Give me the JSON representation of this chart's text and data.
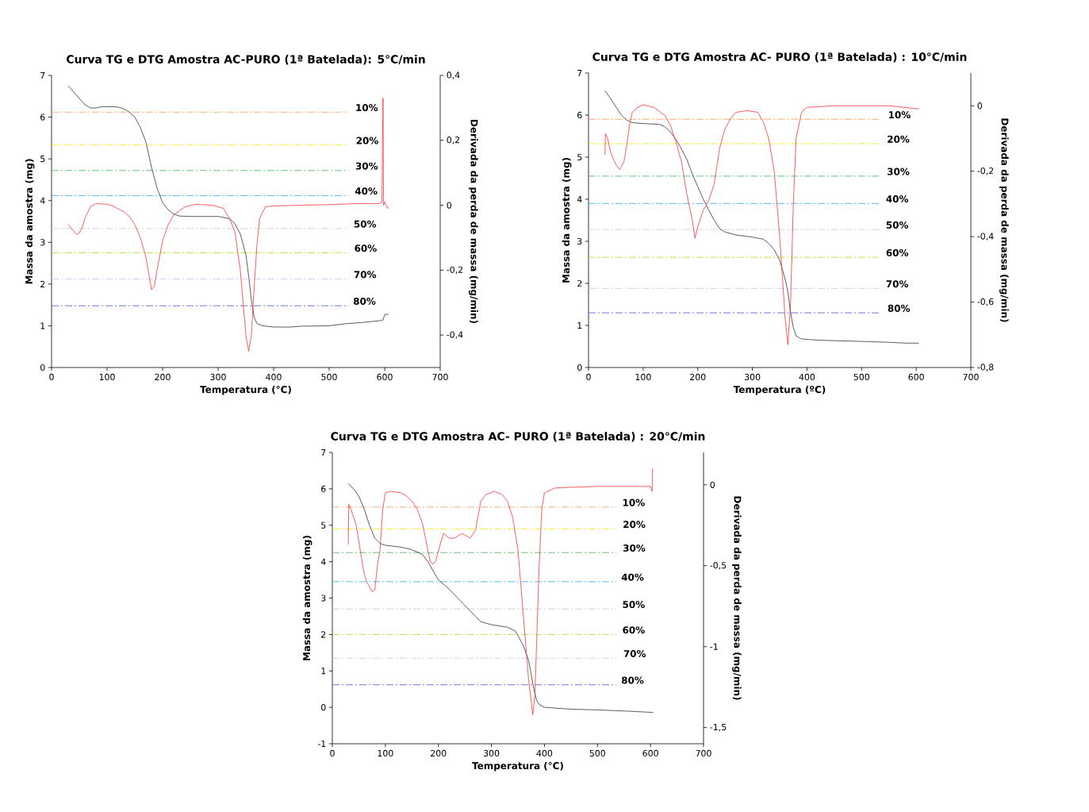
{
  "chart_data": [
    {
      "type": "line",
      "title": "Curva TG e DTG Amostra AC-PURO (1ª Batelada): 5°C/min",
      "xlabel": "Temperatura (°C)",
      "ylabel": "Massa da amostra (mg)",
      "y2label": "Derivada da perda de massa (mg/min)",
      "xlim": [
        0,
        700
      ],
      "xticks": [
        0,
        100,
        200,
        300,
        400,
        500,
        600,
        700
      ],
      "ylim": [
        0,
        7
      ],
      "yticks": [
        0,
        1,
        2,
        3,
        4,
        5,
        6,
        7
      ],
      "y2lim": [
        -0.5,
        0.4
      ],
      "y2ticks": [
        {
          "value": -0.4,
          "label": "-0,4"
        },
        {
          "value": -0.2,
          "label": "-0,2"
        },
        0,
        {
          "value": 0.2,
          "label": "0,2"
        },
        {
          "value": 0.4,
          "label": "0,4"
        }
      ],
      "series": [
        {
          "color": "#333333",
          "x": [
            30,
            40,
            50,
            60,
            70,
            80,
            90,
            110,
            120,
            130,
            140,
            150,
            160,
            170,
            175,
            180,
            190,
            200,
            210,
            220,
            230,
            250,
            300,
            320,
            330,
            340,
            350,
            355,
            360,
            365,
            370,
            380,
            400,
            430,
            450,
            500,
            530,
            560,
            590,
            597,
            600,
            607
          ],
          "values": [
            6.75,
            6.6,
            6.45,
            6.3,
            6.22,
            6.22,
            6.25,
            6.25,
            6.24,
            6.2,
            6.12,
            6.0,
            5.75,
            5.4,
            5.1,
            4.8,
            4.3,
            3.95,
            3.78,
            3.68,
            3.63,
            3.62,
            3.62,
            3.57,
            3.45,
            3.2,
            2.7,
            2.2,
            1.6,
            1.2,
            1.05,
            1.0,
            0.97,
            0.97,
            0.99,
            1.0,
            1.05,
            1.08,
            1.12,
            1.14,
            1.27,
            1.28
          ]
        },
        {
          "color": "#ff3333",
          "axis": "y2",
          "x": [
            30,
            35,
            45,
            50,
            55,
            60,
            70,
            80,
            100,
            110,
            130,
            140,
            150,
            160,
            170,
            180,
            185,
            190,
            200,
            210,
            220,
            240,
            260,
            290,
            310,
            320,
            330,
            340,
            345,
            350,
            355,
            360,
            365,
            370,
            375,
            385,
            400,
            450,
            500,
            550,
            590,
            595,
            597,
            598,
            600,
            605,
            607
          ],
          "values": [
            -0.06,
            -0.07,
            -0.09,
            -0.085,
            -0.07,
            -0.04,
            -0.005,
            0.005,
            0.003,
            -0.002,
            -0.02,
            -0.035,
            -0.06,
            -0.1,
            -0.16,
            -0.26,
            -0.25,
            -0.2,
            -0.11,
            -0.06,
            -0.03,
            -0.005,
            0.003,
            0.0,
            -0.01,
            -0.04,
            -0.08,
            -0.2,
            -0.3,
            -0.4,
            -0.45,
            -0.4,
            -0.25,
            -0.12,
            -0.04,
            -0.005,
            -0.002,
            0.0,
            0.002,
            0.005,
            0.005,
            0.01,
            0.33,
            0.0,
            0.01,
            -0.01,
            -0.005
          ]
        }
      ],
      "ref_lines": [
        {
          "axis": "y",
          "value": 6.12,
          "color": "#ff9955",
          "line_style": "dashed"
        },
        {
          "axis": "y",
          "value": 5.33,
          "color": "#f2e600",
          "line_style": "dashed"
        },
        {
          "axis": "y",
          "value": 4.72,
          "color": "#33bb55",
          "line_style": "dashed"
        },
        {
          "axis": "y",
          "value": 4.12,
          "color": "#22aaee",
          "line_style": "dashed"
        },
        {
          "axis": "y",
          "value": 3.33,
          "color": "#c8c8c8",
          "line_style": "dashed"
        },
        {
          "axis": "y",
          "value": 2.75,
          "color": "#aadd22",
          "line_style": "dashed"
        },
        {
          "axis": "y",
          "value": 2.12,
          "color": "#c8c0f0",
          "line_style": "dashed"
        },
        {
          "axis": "y",
          "value": 1.48,
          "color": "#4455dd",
          "line_style": "dashed"
        }
      ],
      "annotations": [
        {
          "text": "10%",
          "x": 534,
          "y": 6.12
        },
        {
          "text": "20%",
          "x": 535,
          "y": 5.33
        },
        {
          "text": "30%",
          "x": 534,
          "y": 4.72
        },
        {
          "text": "40%",
          "x": 533,
          "y": 4.12
        },
        {
          "text": "50%",
          "x": 531,
          "y": 3.33
        },
        {
          "text": "60%",
          "x": 532,
          "y": 2.75
        },
        {
          "text": "70%",
          "x": 531,
          "y": 2.12
        },
        {
          "text": "80%",
          "x": 530,
          "y": 1.48
        }
      ]
    },
    {
      "type": "line",
      "title": "Curva TG e DTG Amostra AC- PURO (1ª Batelada) : 10°C/min",
      "xlabel": "Temperatura (ºC)",
      "ylabel": "Massa da amostra (mg)",
      "y2label": "Derivada da perda de massa (mg/min)",
      "xlim": [
        0,
        700
      ],
      "xticks": [
        0,
        100,
        200,
        300,
        400,
        500,
        600,
        700
      ],
      "ylim": [
        0,
        7
      ],
      "yticks": [
        0,
        1,
        2,
        3,
        4,
        5,
        6,
        7
      ],
      "y2lim": [
        -0.8,
        0.1
      ],
      "y2ticks": [
        {
          "value": -0.8,
          "label": "-0,8"
        },
        {
          "value": -0.6,
          "label": "-0,6"
        },
        {
          "value": -0.4,
          "label": "-0,4"
        },
        {
          "value": -0.2,
          "label": "-0,2"
        },
        0
      ],
      "series": [
        {
          "color": "#333333",
          "x": [
            30,
            40,
            50,
            60,
            70,
            80,
            100,
            130,
            140,
            150,
            160,
            170,
            180,
            190,
            200,
            210,
            220,
            230,
            240,
            250,
            270,
            300,
            320,
            330,
            340,
            350,
            360,
            365,
            370,
            375,
            380,
            390,
            420,
            500,
            550,
            580,
            605
          ],
          "values": [
            6.58,
            6.4,
            6.2,
            6.0,
            5.88,
            5.82,
            5.8,
            5.78,
            5.72,
            5.6,
            5.42,
            5.2,
            4.95,
            4.6,
            4.3,
            4.0,
            3.75,
            3.5,
            3.3,
            3.22,
            3.15,
            3.1,
            3.05,
            2.95,
            2.8,
            2.55,
            2.1,
            1.8,
            1.3,
            0.95,
            0.75,
            0.68,
            0.65,
            0.62,
            0.6,
            0.58,
            0.58
          ]
        },
        {
          "color": "#ff3333",
          "axis": "y2",
          "x": [
            30,
            31,
            35,
            40,
            50,
            57,
            65,
            70,
            75,
            80,
            90,
            100,
            120,
            140,
            150,
            160,
            170,
            180,
            190,
            195,
            200,
            210,
            220,
            230,
            240,
            250,
            260,
            270,
            290,
            310,
            320,
            330,
            340,
            350,
            360,
            365,
            370,
            375,
            380,
            390,
            400,
            450,
            500,
            550,
            605
          ],
          "values": [
            -0.15,
            -0.085,
            -0.1,
            -0.14,
            -0.18,
            -0.195,
            -0.17,
            -0.12,
            -0.06,
            -0.02,
            -0.005,
            0.003,
            -0.005,
            -0.03,
            -0.06,
            -0.11,
            -0.17,
            -0.27,
            -0.35,
            -0.405,
            -0.37,
            -0.32,
            -0.29,
            -0.24,
            -0.13,
            -0.07,
            -0.04,
            -0.02,
            -0.015,
            -0.02,
            -0.05,
            -0.1,
            -0.2,
            -0.4,
            -0.65,
            -0.73,
            -0.6,
            -0.3,
            -0.1,
            -0.02,
            -0.005,
            0.0,
            0.0,
            0.0,
            -0.01
          ]
        }
      ],
      "ref_lines": [
        {
          "axis": "y",
          "value": 5.9,
          "color": "#ff9955",
          "line_style": "dashed"
        },
        {
          "axis": "y",
          "value": 5.32,
          "color": "#f2e600",
          "line_style": "dashed"
        },
        {
          "axis": "y",
          "value": 4.55,
          "color": "#33bb55",
          "line_style": "dashed"
        },
        {
          "axis": "y",
          "value": 3.9,
          "color": "#22aaee",
          "line_style": "dashed"
        },
        {
          "axis": "y",
          "value": 3.28,
          "color": "#c8c8c8",
          "line_style": "dashed"
        },
        {
          "axis": "y",
          "value": 2.62,
          "color": "#aadd22",
          "line_style": "dashed"
        },
        {
          "axis": "y",
          "value": 1.88,
          "color": "#c8c0f0",
          "line_style": "dashed"
        },
        {
          "axis": "y",
          "value": 1.3,
          "color": "#4455dd",
          "line_style": "dashed"
        }
      ],
      "annotations": [
        {
          "text": "10%",
          "x": 535,
          "y": 5.9
        },
        {
          "text": "20%",
          "x": 533,
          "y": 5.32
        },
        {
          "text": "30%",
          "x": 533,
          "y": 4.55
        },
        {
          "text": "40%",
          "x": 531,
          "y": 3.9
        },
        {
          "text": "50%",
          "x": 531,
          "y": 3.28
        },
        {
          "text": "60%",
          "x": 531,
          "y": 2.62
        },
        {
          "text": "70%",
          "x": 531,
          "y": 1.88
        },
        {
          "text": "80%",
          "x": 534,
          "y": 1.3
        }
      ]
    },
    {
      "type": "line",
      "title": "Curva TG e DTG Amostra AC- PURO (1ª Batelada) : 20°C/min",
      "xlabel": "Temperatura (°C)",
      "ylabel": "Massa da amostra (mg)",
      "y2label": "Derivada da perda de massa (mg/min)",
      "xlim": [
        0,
        700
      ],
      "xticks": [
        0,
        100,
        200,
        300,
        400,
        500,
        600,
        700
      ],
      "ylim": [
        -1,
        7
      ],
      "yticks": [
        -1,
        0,
        1,
        2,
        3,
        4,
        5,
        6,
        7
      ],
      "y2lim": [
        -1.6,
        0.2
      ],
      "y2ticks": [
        {
          "value": -1.5,
          "label": "-1,5"
        },
        -1,
        {
          "value": -0.5,
          "label": "-0,5"
        },
        0
      ],
      "series": [
        {
          "color": "#333333",
          "x": [
            30,
            40,
            50,
            60,
            70,
            80,
            90,
            100,
            130,
            150,
            170,
            180,
            190,
            200,
            220,
            250,
            270,
            280,
            300,
            330,
            345,
            360,
            370,
            375,
            380,
            385,
            390,
            400,
            450,
            500,
            550,
            605
          ],
          "values": [
            6.15,
            6.0,
            5.8,
            5.45,
            5.0,
            4.65,
            4.5,
            4.45,
            4.4,
            4.33,
            4.2,
            4.0,
            3.75,
            3.5,
            3.25,
            2.8,
            2.5,
            2.35,
            2.27,
            2.2,
            2.1,
            1.7,
            1.3,
            0.9,
            0.5,
            0.2,
            0.08,
            0.0,
            -0.05,
            -0.07,
            -0.1,
            -0.14
          ]
        },
        {
          "color": "#ff3333",
          "axis": "y2",
          "x": [
            30,
            31,
            35,
            45,
            55,
            60,
            65,
            70,
            75,
            80,
            85,
            90,
            95,
            100,
            110,
            130,
            140,
            150,
            160,
            170,
            180,
            185,
            190,
            195,
            205,
            210,
            220,
            230,
            245,
            260,
            270,
            280,
            290,
            305,
            320,
            330,
            340,
            350,
            360,
            370,
            378,
            382,
            385,
            390,
            395,
            400,
            420,
            450,
            500,
            550,
            600,
            603,
            604
          ],
          "values": [
            -0.37,
            -0.12,
            -0.15,
            -0.25,
            -0.45,
            -0.55,
            -0.6,
            -0.63,
            -0.66,
            -0.65,
            -0.5,
            -0.4,
            -0.15,
            -0.05,
            -0.04,
            -0.05,
            -0.07,
            -0.1,
            -0.15,
            -0.24,
            -0.4,
            -0.48,
            -0.49,
            -0.47,
            -0.35,
            -0.3,
            -0.33,
            -0.33,
            -0.3,
            -0.33,
            -0.28,
            -0.1,
            -0.06,
            -0.04,
            -0.06,
            -0.1,
            -0.2,
            -0.4,
            -0.8,
            -1.2,
            -1.42,
            -1.3,
            -1.0,
            -0.5,
            -0.15,
            -0.05,
            -0.02,
            -0.015,
            -0.01,
            -0.01,
            -0.01,
            -0.04,
            0.1
          ]
        }
      ],
      "ref_lines": [
        {
          "axis": "y",
          "value": 5.5,
          "color": "#ff9955",
          "line_style": "dashed"
        },
        {
          "axis": "y",
          "value": 4.9,
          "color": "#f2e600",
          "line_style": "dashed"
        },
        {
          "axis": "y",
          "value": 4.25,
          "color": "#33bb55",
          "line_style": "dashed"
        },
        {
          "axis": "y",
          "value": 3.45,
          "color": "#22aaee",
          "line_style": "dashed"
        },
        {
          "axis": "y",
          "value": 2.7,
          "color": "#c8c8c8",
          "line_style": "dashed"
        },
        {
          "axis": "y",
          "value": 2.0,
          "color": "#aadd22",
          "line_style": "dashed"
        },
        {
          "axis": "y",
          "value": 1.35,
          "color": "#c8c0f0",
          "line_style": "dashed"
        },
        {
          "axis": "y",
          "value": 0.62,
          "color": "#4455dd",
          "line_style": "dashed"
        }
      ],
      "annotations": [
        {
          "text": "10%",
          "x": 533,
          "y": 5.5
        },
        {
          "text": "20%",
          "x": 534,
          "y": 4.9
        },
        {
          "text": "30%",
          "x": 534,
          "y": 4.25
        },
        {
          "text": "40%",
          "x": 531,
          "y": 3.45
        },
        {
          "text": "50%",
          "x": 533,
          "y": 2.7
        },
        {
          "text": "60%",
          "x": 533,
          "y": 2.0
        },
        {
          "text": "70%",
          "x": 535,
          "y": 1.35
        },
        {
          "text": "80%",
          "x": 531,
          "y": 0.62
        }
      ]
    }
  ]
}
